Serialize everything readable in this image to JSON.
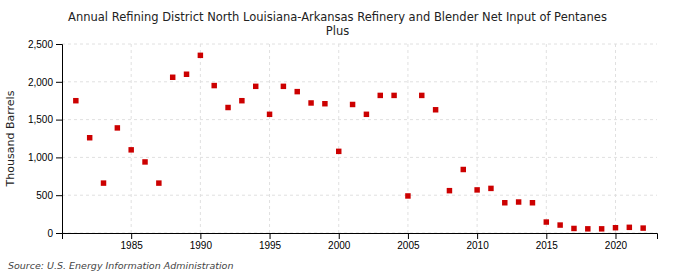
{
  "chart_data": {
    "type": "scatter",
    "title": "Annual Refining District North Louisiana-Arkansas Refinery and Blender Net Input of Pentanes\nPlus",
    "y_label": "Thousand Barrels",
    "annotations": [
      "Source: U.S. Energy Information Administration"
    ],
    "x": [
      1981,
      1982,
      1983,
      1984,
      1985,
      1986,
      1987,
      1988,
      1989,
      1990,
      1991,
      1992,
      1993,
      1994,
      1995,
      1996,
      1997,
      1998,
      1999,
      2000,
      2001,
      2002,
      2003,
      2004,
      2005,
      2006,
      2007,
      2008,
      2009,
      2010,
      2011,
      2012,
      2013,
      2014,
      2015,
      2016,
      2017,
      2018,
      2019,
      2020,
      2021,
      2022
    ],
    "values": [
      1750,
      1260,
      660,
      1390,
      1100,
      940,
      660,
      2060,
      2100,
      2350,
      1950,
      1660,
      1750,
      1940,
      1570,
      1940,
      1870,
      1720,
      1710,
      1080,
      1700,
      1570,
      1820,
      1820,
      490,
      1820,
      1630,
      560,
      840,
      570,
      590,
      400,
      410,
      400,
      145,
      105,
      60,
      55,
      55,
      70,
      75,
      65
    ],
    "color": "#cc0000",
    "marker": "square",
    "xlim": [
      1980,
      2023
    ],
    "ylim": [
      0,
      2500
    ],
    "xticks": [
      1985,
      1990,
      1995,
      2000,
      2005,
      2010,
      2015,
      2020
    ],
    "yticks": [
      0,
      500,
      {
        "value": 1000,
        "label": "1,000"
      },
      {
        "value": 1500,
        "label": "1,500"
      },
      {
        "value": 2000,
        "label": "2,000"
      },
      {
        "value": 2500,
        "label": "2,500"
      }
    ],
    "grid": true
  }
}
